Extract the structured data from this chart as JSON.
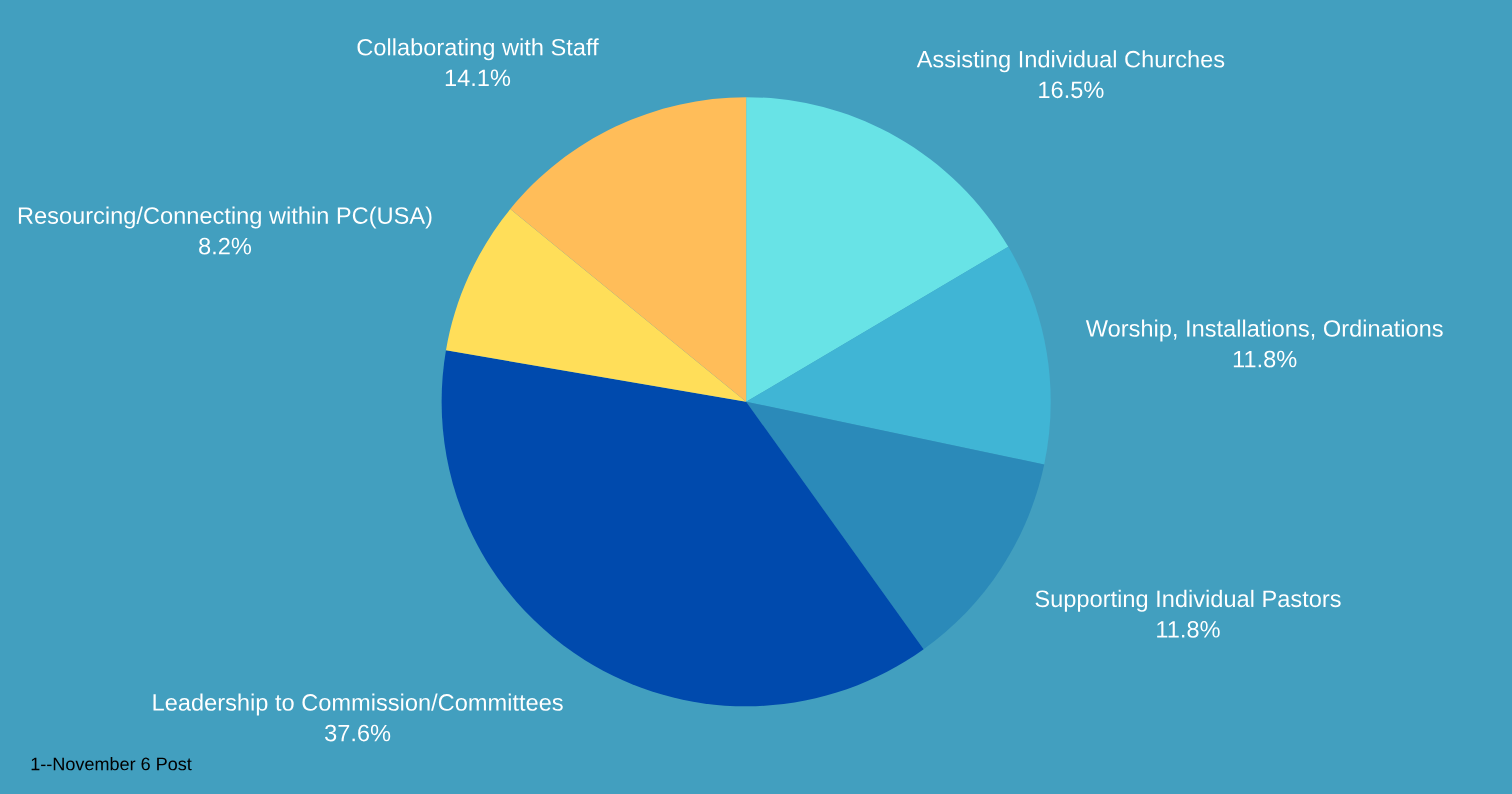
{
  "chart_data": {
    "type": "pie",
    "categories": [
      "Assisting Individual Churches",
      "Worship, Installations, Ordinations",
      "Supporting Individual Pastors",
      "Leadership to Commission/Committees",
      "Resourcing/Connecting within PC(USA)",
      "Collaborating with Staff"
    ],
    "values": [
      16.5,
      11.8,
      11.8,
      37.6,
      8.2,
      14.1
    ],
    "colors": [
      "#68e3e6",
      "#40b5d5",
      "#2b8ab9",
      "#004aad",
      "#ffde59",
      "#ffbd59"
    ],
    "value_labels": [
      "16.5%",
      "11.8%",
      "11.8%",
      "37.6%",
      "8.2%",
      "14.1%"
    ],
    "annotations": [
      "1--November 6 Post"
    ]
  }
}
